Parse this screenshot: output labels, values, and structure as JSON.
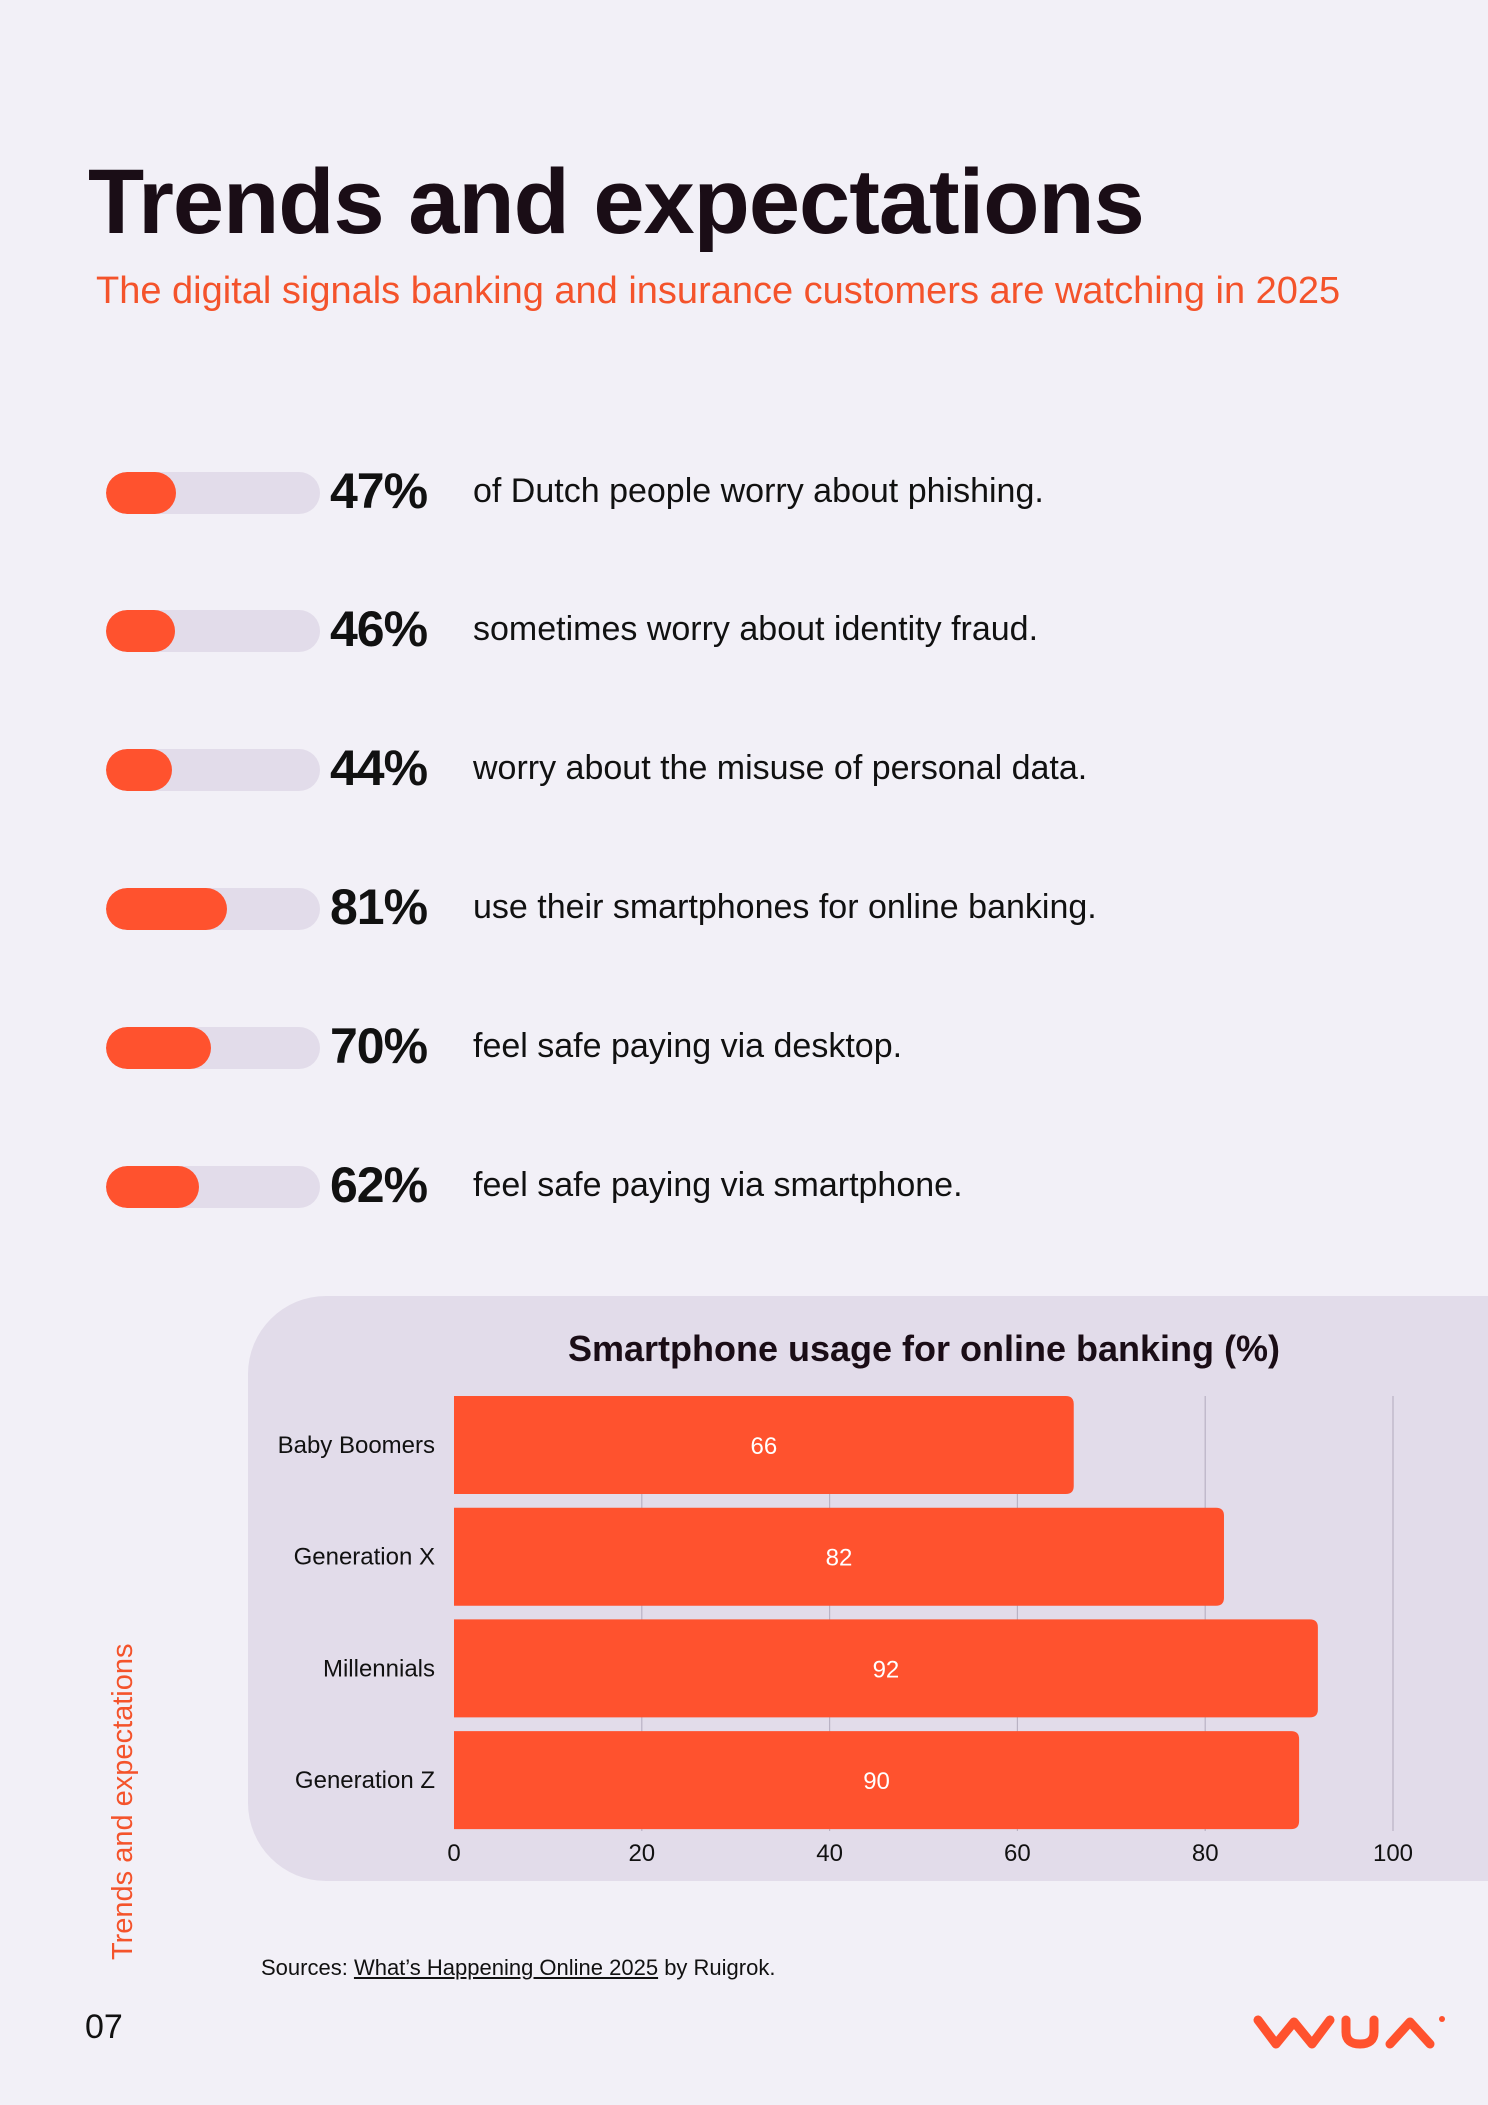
{
  "header": {
    "title": "Trends and expectations",
    "subtitle": "The digital signals banking and insurance customers are watching in 2025"
  },
  "stats": [
    {
      "percent_label": "47%",
      "value": 47,
      "text": "of Dutch people worry about phishing."
    },
    {
      "percent_label": "46%",
      "value": 46,
      "text": "sometimes worry about identity fraud."
    },
    {
      "percent_label": "44%",
      "value": 44,
      "text": "worry about the misuse of personal data."
    },
    {
      "percent_label": "81%",
      "value": 81,
      "text": "use their smartphones for online banking."
    },
    {
      "percent_label": "70%",
      "value": 70,
      "text": "feel safe paying via desktop."
    },
    {
      "percent_label": "62%",
      "value": 62,
      "text": "feel safe paying via smartphone."
    }
  ],
  "chart_data": {
    "type": "bar",
    "orientation": "horizontal",
    "title": "Smartphone usage for online banking (%)",
    "categories": [
      "Baby Boomers",
      "Generation X",
      "Millennials",
      "Generation Z"
    ],
    "values": [
      66,
      82,
      92,
      90
    ],
    "xlim": [
      0,
      100
    ],
    "xticks": [
      0,
      20,
      40,
      60,
      80,
      100
    ],
    "grid": true,
    "data_labels": true,
    "bar_color": "#ff522e"
  },
  "sidebar_label": "Trends and expectations",
  "footer": {
    "sources_prefix": "Sources: ",
    "sources_link": "What’s Happening Online 2025",
    "sources_suffix": " by Ruigrok.",
    "page_number": "07",
    "logo": "wua-logo"
  },
  "colors": {
    "accent": "#ff522e",
    "background": "#f2f0f7",
    "panel": "#e2dcea",
    "text": "#1a0d16"
  }
}
